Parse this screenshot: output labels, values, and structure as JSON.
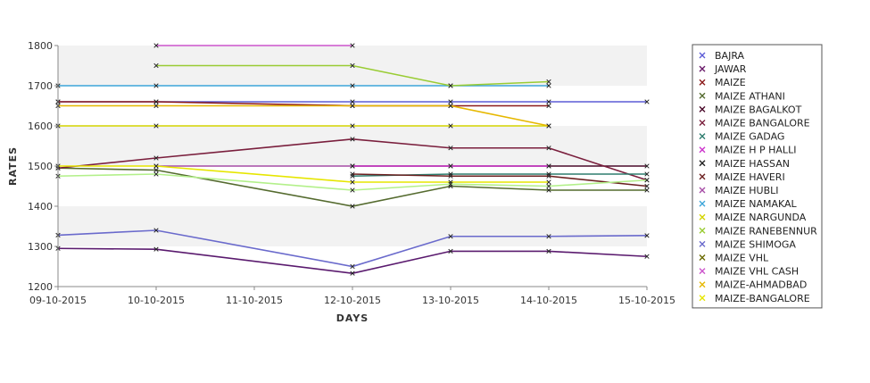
{
  "chart_data": {
    "type": "line",
    "title": "",
    "xlabel": "DAYS",
    "ylabel": "RATES",
    "categories": [
      "09-10-2015",
      "10-10-2015",
      "11-10-2015",
      "12-10-2015",
      "13-10-2015",
      "14-10-2015",
      "15-10-2015"
    ],
    "yticks": [
      1200,
      1300,
      1400,
      1500,
      1600,
      1700,
      1800
    ],
    "ylim": [
      1200,
      1800
    ],
    "grid": "alternating horizontal bands",
    "legend_position": "right",
    "series": [
      {
        "name": "BAJRA",
        "color": "#5b5bd6",
        "values": [
          1660,
          1660,
          null,
          1660,
          1660,
          1660,
          1660
        ]
      },
      {
        "name": "JAWAR",
        "color": "#6a1b6a",
        "values": [
          null,
          null,
          null,
          null,
          null,
          null,
          null
        ]
      },
      {
        "name": "MAIZE",
        "color": "#8b1a1a",
        "values": [
          1660,
          1660,
          null,
          1650,
          1650,
          1650,
          null
        ]
      },
      {
        "name": "MAIZE ATHANI",
        "color": "#556b2f",
        "values": [
          1495,
          1490,
          null,
          1400,
          1450,
          1440,
          1440
        ]
      },
      {
        "name": "MAIZE BAGALKOT",
        "color": "#4b0a2a",
        "values": [
          null,
          null,
          null,
          1500,
          1500,
          1500,
          1500
        ]
      },
      {
        "name": "MAIZE BANGALORE",
        "color": "#7a1f3d",
        "values": [
          1495,
          1520,
          null,
          1567,
          1545,
          1545,
          1465
        ]
      },
      {
        "name": "MAIZE GADAG",
        "color": "#2e7d6f",
        "values": [
          null,
          null,
          null,
          1475,
          1480,
          1480,
          1480
        ]
      },
      {
        "name": "MAIZE H P HALLI",
        "color": "#cc33cc",
        "values": [
          null,
          null,
          null,
          1500,
          1500,
          1500,
          null
        ]
      },
      {
        "name": "MAIZE HASSAN",
        "color": "#222222",
        "values": [
          null,
          null,
          null,
          null,
          null,
          null,
          null
        ]
      },
      {
        "name": "MAIZE HAVERI",
        "color": "#6b2020",
        "values": [
          null,
          null,
          null,
          1480,
          1475,
          1475,
          1450
        ]
      },
      {
        "name": "MAIZE HUBLI",
        "color": "#a64ca6",
        "values": [
          null,
          1500,
          null,
          1500,
          null,
          null,
          null
        ]
      },
      {
        "name": "MAIZE NAMAKAL",
        "color": "#3da5d9",
        "values": [
          1700,
          1700,
          null,
          1700,
          1700,
          1700,
          null
        ]
      },
      {
        "name": "MAIZE NARGUNDA",
        "color": "#d4d400",
        "values": [
          1600,
          1600,
          null,
          1600,
          1600,
          1600,
          null
        ]
      },
      {
        "name": "MAIZE RANEBENNUR",
        "color": "#99cc33",
        "values": [
          null,
          1750,
          null,
          1750,
          1700,
          1710,
          null
        ]
      },
      {
        "name": "MAIZE SHIMOGA",
        "color": "#6a6acc",
        "values": [
          1328,
          1340,
          null,
          1250,
          1325,
          1325,
          1327
        ]
      },
      {
        "name": "MAIZE VHL",
        "color": "#6b6b00",
        "values": [
          null,
          null,
          null,
          null,
          null,
          null,
          null
        ]
      },
      {
        "name": "MAIZE VHL CASH",
        "color": "#cc55cc",
        "values": [
          null,
          1800,
          null,
          1800,
          null,
          null,
          null
        ]
      },
      {
        "name": "MAIZE-AHMADBAD",
        "color": "#e6b800",
        "values": [
          1650,
          1650,
          null,
          1650,
          1650,
          1600,
          null
        ]
      },
      {
        "name": "MAIZE-BANGALORE",
        "color": "#e6e600",
        "values": [
          1500,
          1500,
          null,
          1460,
          1460,
          1460,
          null
        ]
      }
    ],
    "extra_lines": [
      {
        "color": "#b3f08a",
        "values": [
          1475,
          1480,
          null,
          1440,
          1455,
          1450,
          1465
        ]
      },
      {
        "color": "#5a1a6e",
        "values": [
          1295,
          1293,
          null,
          1233,
          1288,
          1288,
          1275
        ]
      }
    ]
  }
}
